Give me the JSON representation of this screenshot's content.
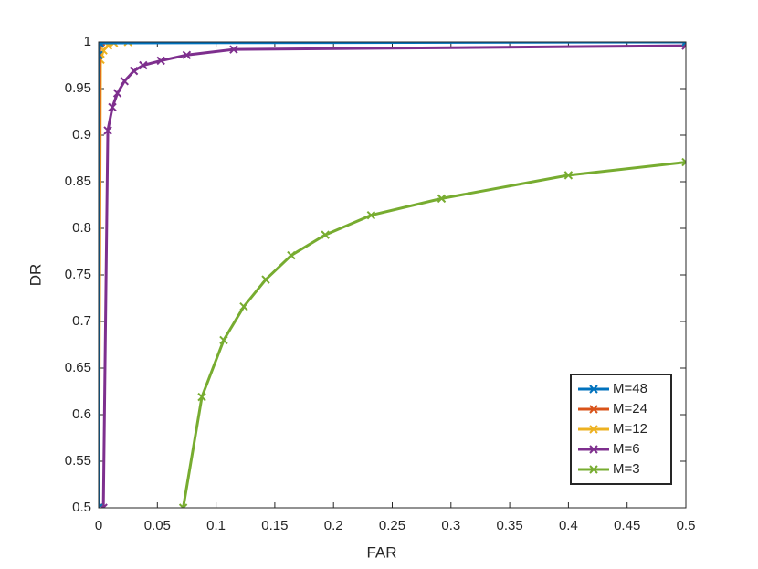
{
  "chart_data": {
    "type": "line",
    "x_label": "FAR",
    "y_label": "DR",
    "xlim": [
      0,
      0.5
    ],
    "ylim": [
      0.5,
      1
    ],
    "xticks": [
      0,
      0.05,
      0.1,
      0.15,
      0.2,
      0.25,
      0.3,
      0.35,
      0.4,
      0.45,
      0.5
    ],
    "yticks": [
      0.5,
      0.55,
      0.6,
      0.65,
      0.7,
      0.75,
      0.8,
      0.85,
      0.9,
      0.95,
      1
    ],
    "legend": "bottom-right",
    "series": [
      {
        "name": "M=48",
        "color": "#0072bd",
        "x": [
          0,
          0,
          0.001,
          0.5
        ],
        "values": [
          0.5,
          0.986,
          0.999,
          1
        ]
      },
      {
        "name": "M=24",
        "color": "#d95319",
        "x": [
          0,
          0.001,
          0.002,
          0.5
        ],
        "values": [
          0.5,
          0.998,
          1,
          1
        ]
      },
      {
        "name": "M=12",
        "color": "#edb120",
        "x": [
          0,
          0.0016,
          0.004,
          0.008,
          0.013,
          0.025,
          0.5
        ],
        "values": [
          0.5,
          0.981,
          0.991,
          0.996,
          0.999,
          1,
          1
        ]
      },
      {
        "name": "M=6",
        "color": "#7e2f8e",
        "x": [
          0.004,
          0.0078,
          0.0117,
          0.016,
          0.022,
          0.03,
          0.038,
          0.053,
          0.075,
          0.115,
          0.5
        ],
        "values": [
          0.5,
          0.905,
          0.93,
          0.945,
          0.958,
          0.969,
          0.975,
          0.98,
          0.986,
          0.992,
          0.996
        ]
      },
      {
        "name": "M=3",
        "color": "#77ac30",
        "x": [
          0.072,
          0.0879,
          0.1065,
          0.1236,
          0.1423,
          0.164,
          0.193,
          0.232,
          0.292,
          0.4,
          0.5
        ],
        "values": [
          0.5,
          0.619,
          0.68,
          0.716,
          0.745,
          0.771,
          0.793,
          0.814,
          0.832,
          0.857,
          0.871
        ]
      }
    ]
  }
}
